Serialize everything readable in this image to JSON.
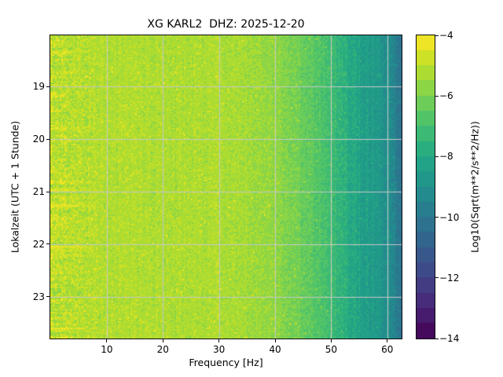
{
  "page": {
    "background": "#ffffff"
  },
  "chart_data": {
    "type": "heatmap",
    "subtype": "seismic-spectrogram",
    "title": "XG KARL2  DHZ: 2025-12-20",
    "xlabel": "Frequency [Hz]",
    "ylabel": "Lokalzeit (UTC + 1 Stunde)",
    "x_range_hz": [
      0,
      62.5
    ],
    "x_ticks": [
      10,
      20,
      30,
      40,
      50,
      60
    ],
    "y_ticks_hours": [
      19,
      20,
      21,
      22,
      23
    ],
    "y_range_hours": [
      18.02,
      23.8
    ],
    "y_direction": "time-increases-downward",
    "grid": true,
    "grid_color": "#c8c8c8",
    "colorbar": {
      "label": "Log10(Sqrt(m**2/s**2/Hz))",
      "ticks": [
        -4,
        -6,
        -8,
        -10,
        -12,
        -14
      ],
      "vmin": -14,
      "vmax": -4,
      "n_levels": 20,
      "colormap": "viridis",
      "stops": [
        [
          0.0,
          "#440154"
        ],
        [
          0.1,
          "#482475"
        ],
        [
          0.2,
          "#414487"
        ],
        [
          0.3,
          "#355f8d"
        ],
        [
          0.4,
          "#2a788e"
        ],
        [
          0.5,
          "#21918c"
        ],
        [
          0.6,
          "#22a884"
        ],
        [
          0.7,
          "#44bf70"
        ],
        [
          0.8,
          "#7ad151"
        ],
        [
          0.9,
          "#bddf26"
        ],
        [
          1.0,
          "#fde725"
        ]
      ]
    },
    "mean_level_by_freq_hz_log10": [
      [
        0,
        -5.0
      ],
      [
        2,
        -5.1
      ],
      [
        10,
        -5.2
      ],
      [
        30,
        -5.25
      ],
      [
        36,
        -5.4
      ],
      [
        40,
        -5.7
      ],
      [
        44,
        -6.1
      ],
      [
        47,
        -6.6
      ],
      [
        50,
        -7.2
      ],
      [
        53,
        -7.8
      ],
      [
        56,
        -8.4
      ],
      [
        58,
        -8.75
      ],
      [
        60,
        -9.0
      ],
      [
        61,
        -9.35
      ],
      [
        61.8,
        -9.8
      ],
      [
        62.5,
        -10.3
      ]
    ],
    "noise_speckle_log10": 0.33,
    "low_freq_streaky_below_hz": 9,
    "transient_events": [
      {
        "time_hours": 21.28,
        "below_hz": 9,
        "peak_boost_log10": 1.7
      },
      {
        "time_hours": 21.52,
        "below_hz": 7,
        "peak_boost_log10": 1.0
      },
      {
        "time_hours": 21.66,
        "below_hz": 5,
        "peak_boost_log10": 0.6
      }
    ]
  }
}
